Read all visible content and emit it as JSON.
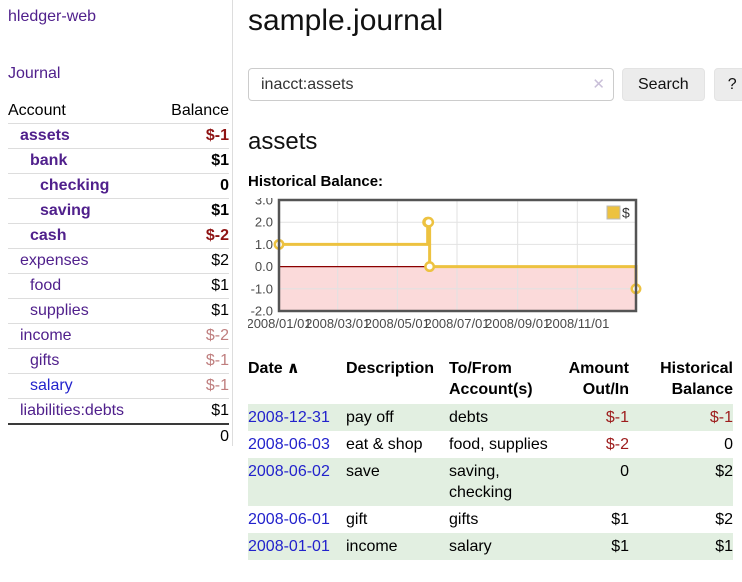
{
  "app": {
    "title": "hledger-web"
  },
  "colors": {
    "link_purple": "#50208c",
    "link_blue": "#2222cc",
    "negative_strong": "#8e1313",
    "negative_soft": "#bf7e7e",
    "row_stripe_green": "#e2efe1",
    "chart_gold": "#edc240",
    "chart_negative_pink": "#fbdada",
    "chart_zero_line": "#8b0000"
  },
  "sidebar": {
    "journal_link": "Journal",
    "accounts_table": {
      "headers": {
        "account": "Account",
        "balance": "Balance"
      },
      "rows": [
        {
          "label": "assets",
          "indent": 1,
          "bold": true,
          "balance": "$-1",
          "bal_class": "neg-strong",
          "link_class": ""
        },
        {
          "label": "bank",
          "indent": 2,
          "bold": true,
          "balance": "$1",
          "bal_class": "",
          "link_class": ""
        },
        {
          "label": "checking",
          "indent": 3,
          "bold": true,
          "balance": "0",
          "bal_class": "",
          "link_class": ""
        },
        {
          "label": "saving",
          "indent": 3,
          "bold": true,
          "balance": "$1",
          "bal_class": "",
          "link_class": ""
        },
        {
          "label": "cash",
          "indent": 2,
          "bold": true,
          "balance": "$-2",
          "bal_class": "neg-strong",
          "link_class": ""
        },
        {
          "label": "expenses",
          "indent": 1,
          "bold": false,
          "balance": "$2",
          "bal_class": "",
          "link_class": ""
        },
        {
          "label": "food",
          "indent": 2,
          "bold": false,
          "balance": "$1",
          "bal_class": "",
          "link_class": ""
        },
        {
          "label": "supplies",
          "indent": 2,
          "bold": false,
          "balance": "$1",
          "bal_class": "",
          "link_class": ""
        },
        {
          "label": "income",
          "indent": 1,
          "bold": false,
          "balance": "$-2",
          "bal_class": "neg-soft",
          "link_class": ""
        },
        {
          "label": "gifts",
          "indent": 2,
          "bold": false,
          "balance": "$-1",
          "bal_class": "neg-soft",
          "link_class": ""
        },
        {
          "label": "salary",
          "indent": 2,
          "bold": false,
          "balance": "$-1",
          "bal_class": "neg-soft",
          "link_class": "blue"
        },
        {
          "label": "liabilities:debts",
          "indent": 1,
          "bold": false,
          "balance": "$1",
          "bal_class": "",
          "link_class": ""
        }
      ],
      "total": "0"
    }
  },
  "main": {
    "title": "sample.journal",
    "search": {
      "value": "inacct:assets",
      "clear_icon": "✕",
      "button_label": "Search",
      "help_label": "?"
    },
    "account_heading": "assets",
    "chart_label": "Historical Balance:",
    "register_table": {
      "headers": [
        {
          "lines": [
            "Date"
          ],
          "sort_icon": "∧",
          "align": "left"
        },
        {
          "lines": [
            "Description"
          ],
          "align": "left"
        },
        {
          "lines": [
            "To/From",
            "Account(s)"
          ],
          "align": "left"
        },
        {
          "lines": [
            "Amount",
            "Out/In"
          ],
          "align": "right"
        },
        {
          "lines": [
            "Historical",
            "Balance"
          ],
          "align": "right"
        }
      ],
      "rows": [
        {
          "date": "2008-12-31",
          "description": "pay off",
          "accounts": "debts",
          "amount": "$-1",
          "amount_neg": true,
          "balance": "$-1",
          "balance_neg": true
        },
        {
          "date": "2008-06-03",
          "description": "eat & shop",
          "accounts": "food, supplies",
          "amount": "$-2",
          "amount_neg": true,
          "balance": "0",
          "balance_neg": false
        },
        {
          "date": "2008-06-02",
          "description": "save",
          "accounts": "saving, checking",
          "amount": "0",
          "amount_neg": false,
          "balance": "$2",
          "balance_neg": false
        },
        {
          "date": "2008-06-01",
          "description": "gift",
          "accounts": "gifts",
          "amount": "$1",
          "amount_neg": false,
          "balance": "$2",
          "balance_neg": false
        },
        {
          "date": "2008-01-01",
          "description": "income",
          "accounts": "salary",
          "amount": "$1",
          "amount_neg": false,
          "balance": "$1",
          "balance_neg": false
        }
      ]
    }
  },
  "chart_data": {
    "type": "line",
    "title": "Historical Balance:",
    "step": true,
    "series": [
      {
        "name": "$",
        "color": "#edc240",
        "points": [
          [
            "2008-01-01",
            1
          ],
          [
            "2008-06-01",
            2
          ],
          [
            "2008-06-02",
            2
          ],
          [
            "2008-06-03",
            0
          ],
          [
            "2008-12-31",
            -1
          ]
        ]
      }
    ],
    "x_domain": [
      "2008-01-01",
      "2008-12-31"
    ],
    "x_ticks": [
      {
        "date": "2008-01-01",
        "label": "2008/01/01"
      },
      {
        "date": "2008-03-01",
        "label": "2008/03/01"
      },
      {
        "date": "2008-05-01",
        "label": "2008/05/01"
      },
      {
        "date": "2008-07-01",
        "label": "2008/07/01"
      },
      {
        "date": "2008-09-01",
        "label": "2008/09/01"
      },
      {
        "date": "2008-11-01",
        "label": "2008/11/01"
      }
    ],
    "y_ticks": [
      {
        "v": 3,
        "label": "3.0"
      },
      {
        "v": 2,
        "label": "2.0"
      },
      {
        "v": 1,
        "label": "1.0"
      },
      {
        "v": 0,
        "label": "0.0"
      },
      {
        "v": -1,
        "label": "-1.0"
      },
      {
        "v": -2,
        "label": "-2.0"
      }
    ],
    "ylim": [
      -2,
      3
    ],
    "grid": true,
    "legend_position": "top-right",
    "negative_region_fill": "#fbdada",
    "zero_line_color": "#8b0000"
  }
}
